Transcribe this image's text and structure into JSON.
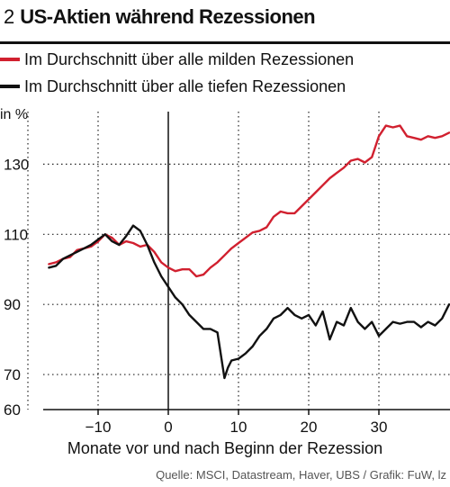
{
  "figure": {
    "number": "2",
    "title": "US-Aktien während Rezessionen",
    "y_unit": "in %",
    "source": "Quelle: MSCI, Datastream, Haver, UBS / Grafik: FuW, lz"
  },
  "colors": {
    "mild": "#d1202f",
    "severe": "#111111",
    "grid": "#222222"
  },
  "chart_data": {
    "type": "line",
    "title": "US-Aktien während Rezessionen",
    "xlabel": "Monate vor und nach Beginn der Rezession",
    "ylabel": "in %",
    "xlim": [
      -17,
      40
    ],
    "ylim": [
      60,
      145
    ],
    "y_ticks": [
      60,
      70,
      90,
      110,
      130
    ],
    "x_ticks": [
      -10,
      0,
      10,
      20,
      30
    ],
    "x_tick_labels": [
      "−10",
      "0",
      "10",
      "20",
      "30"
    ],
    "vline_x": 0,
    "grid": "dotted vertical and horizontal",
    "legend_position": "top",
    "series": [
      {
        "name": "Im Durchschnitt über alle milden Rezessionen",
        "color": "#d1202f",
        "x": [
          -17,
          -16,
          -15,
          -14,
          -13,
          -12,
          -11,
          -10,
          -9,
          -8,
          -7,
          -6,
          -5,
          -4,
          -3,
          -2,
          -1,
          0,
          1,
          2,
          3,
          4,
          5,
          6,
          7,
          8,
          9,
          10,
          11,
          12,
          13,
          14,
          15,
          16,
          17,
          18,
          19,
          20,
          21,
          22,
          23,
          24,
          25,
          26,
          27,
          28,
          29,
          30,
          31,
          32,
          33,
          34,
          35,
          36,
          37,
          38,
          39,
          40
        ],
        "values": [
          101.5,
          102,
          103,
          103.5,
          105.5,
          106,
          106.5,
          108,
          110,
          109,
          107,
          108,
          107.5,
          106.5,
          107,
          105,
          102,
          100.5,
          99.5,
          100,
          100,
          98,
          98.5,
          100.5,
          102,
          104,
          106,
          107.5,
          109,
          110.5,
          111,
          112,
          115,
          116.5,
          116,
          116,
          118,
          120,
          122,
          124,
          126,
          127.5,
          129,
          131,
          131.5,
          130.5,
          132,
          138,
          141,
          140.5,
          141,
          138,
          137.5,
          137,
          138,
          137.5,
          138,
          139
        ]
      },
      {
        "name": "Im Durchschnitt über alle tiefen Rezessionen",
        "color": "#111111",
        "x": [
          -17,
          -16,
          -15,
          -14,
          -13,
          -12,
          -11,
          -10,
          -9,
          -8,
          -7,
          -6,
          -5,
          -4,
          -3,
          -2,
          -1,
          0,
          1,
          2,
          3,
          4,
          5,
          6,
          7,
          8,
          8.5,
          9,
          10,
          11,
          12,
          13,
          14,
          15,
          16,
          17,
          18,
          19,
          20,
          21,
          22,
          23,
          24,
          25,
          26,
          27,
          28,
          29,
          30,
          31,
          32,
          33,
          34,
          35,
          36,
          37,
          38,
          39,
          40
        ],
        "values": [
          100.5,
          101,
          103,
          104,
          105,
          106,
          107,
          108.5,
          110,
          108,
          107,
          109.5,
          112.5,
          111,
          107,
          102,
          98,
          95,
          92,
          90,
          87,
          85,
          83,
          83,
          82,
          69,
          72,
          74,
          74.5,
          76,
          78,
          81,
          83,
          86,
          87,
          89,
          87,
          86,
          87,
          84,
          88,
          80,
          85,
          84,
          89,
          85,
          83,
          85,
          81,
          83,
          85,
          84.5,
          85,
          85,
          83.5,
          85,
          84,
          86,
          90
        ]
      }
    ]
  }
}
